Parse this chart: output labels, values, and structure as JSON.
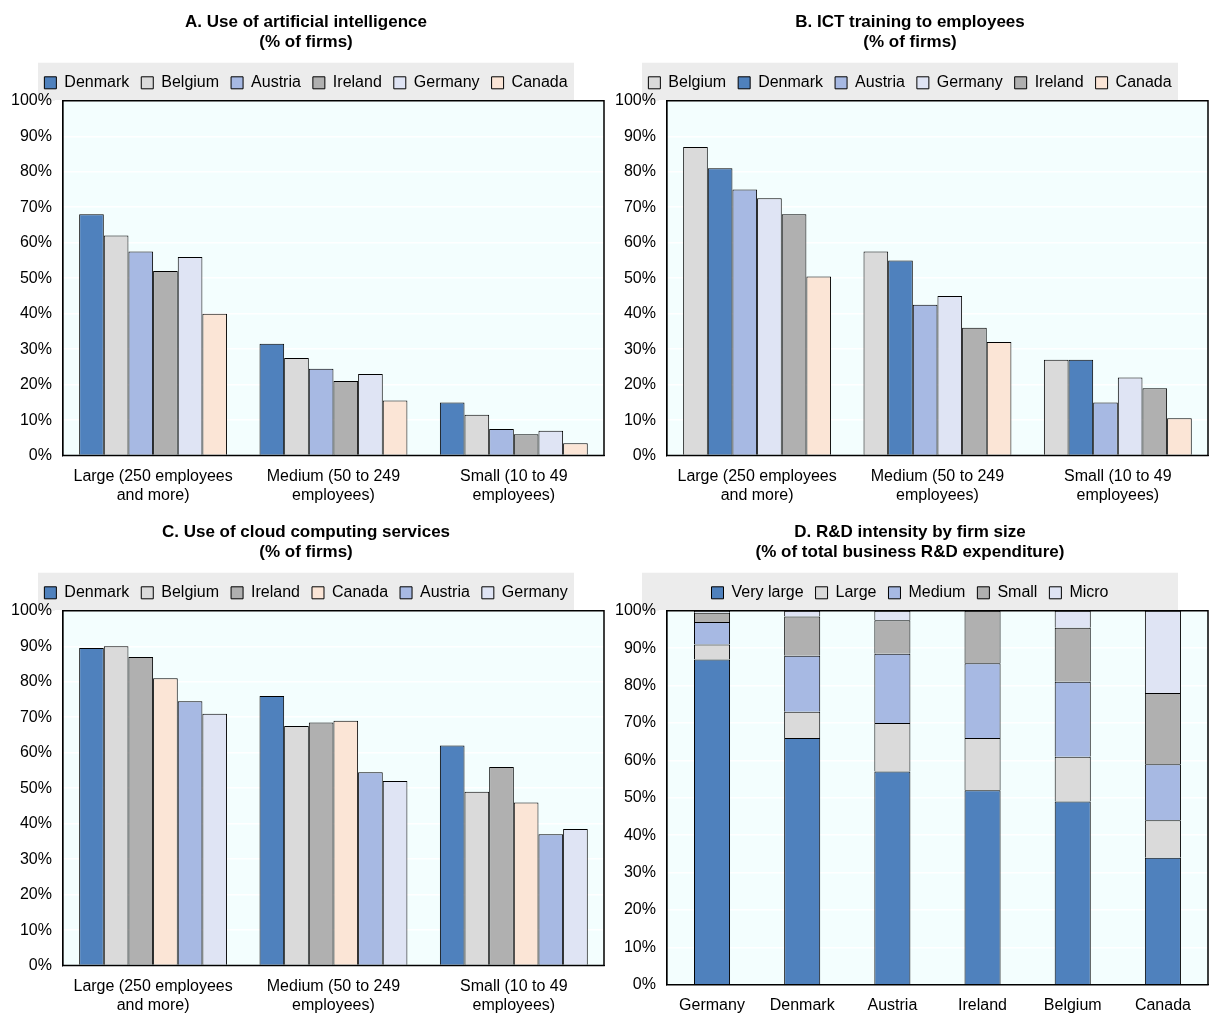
{
  "chart_data": [
    {
      "type": "bar",
      "title": "A. Use of artificial intelligence",
      "subtitle": "(% of firms)",
      "categories": [
        "Large (250 employees and more)",
        "Medium (50 to 249 employees)",
        "Small (10 to 49 employees)"
      ],
      "series": [
        {
          "name": "Denmark",
          "color": "#4f81bd",
          "values": [
            68,
            31.5,
            15
          ]
        },
        {
          "name": "Belgium",
          "color": "#dadada",
          "values": [
            62,
            27.5,
            11.5
          ]
        },
        {
          "name": "Austria",
          "color": "#a7b9e3",
          "values": [
            57.5,
            24.5,
            7.5
          ]
        },
        {
          "name": "Ireland",
          "color": "#b0b0b0",
          "values": [
            52,
            21,
            6
          ]
        },
        {
          "name": "Germany",
          "color": "#dfe4f4",
          "values": [
            56,
            23,
            7
          ]
        },
        {
          "name": "Canada",
          "color": "#fbe5d6",
          "values": [
            40,
            15.5,
            3.5
          ]
        }
      ],
      "ylim": [
        0,
        100
      ],
      "yticks": [
        {
          "value": 0,
          "label": "0%"
        },
        {
          "value": 10,
          "label": "10%"
        },
        {
          "value": 20,
          "label": "20%"
        },
        {
          "value": 30,
          "label": "30%"
        },
        {
          "value": 40,
          "label": "40%"
        },
        {
          "value": 50,
          "label": "50%"
        },
        {
          "value": 60,
          "label": "60%"
        },
        {
          "value": 70,
          "label": "70%"
        },
        {
          "value": 80,
          "label": "80%"
        },
        {
          "value": 90,
          "label": "90%"
        },
        {
          "value": 100,
          "label": "100%"
        }
      ],
      "grid": "y",
      "legend": "top"
    },
    {
      "type": "bar",
      "title": "B. ICT training to employees",
      "subtitle": "(% of firms)",
      "categories": [
        "Large (250 employees and more)",
        "Medium (50 to 249 employees)",
        "Small (10 to 49 employees)"
      ],
      "series": [
        {
          "name": "Belgium",
          "color": "#dadada",
          "values": [
            87,
            57.5,
            27
          ]
        },
        {
          "name": "Denmark",
          "color": "#4f81bd",
          "values": [
            81,
            55,
            27
          ]
        },
        {
          "name": "Austria",
          "color": "#a7b9e3",
          "values": [
            75,
            42.5,
            15
          ]
        },
        {
          "name": "Germany",
          "color": "#dfe4f4",
          "values": [
            72.5,
            45,
            22
          ]
        },
        {
          "name": "Ireland",
          "color": "#b0b0b0",
          "values": [
            68,
            36,
            19
          ]
        },
        {
          "name": "Canada",
          "color": "#fbe5d6",
          "values": [
            50.5,
            32,
            10.5
          ]
        }
      ],
      "ylim": [
        0,
        100
      ],
      "yticks": [
        {
          "value": 0,
          "label": "0%"
        },
        {
          "value": 10,
          "label": "10%"
        },
        {
          "value": 20,
          "label": "20%"
        },
        {
          "value": 30,
          "label": "30%"
        },
        {
          "value": 40,
          "label": "40%"
        },
        {
          "value": 50,
          "label": "50%"
        },
        {
          "value": 60,
          "label": "60%"
        },
        {
          "value": 70,
          "label": "70%"
        },
        {
          "value": 80,
          "label": "80%"
        },
        {
          "value": 90,
          "label": "90%"
        },
        {
          "value": 100,
          "label": "100%"
        }
      ],
      "grid": "y",
      "legend": "top"
    },
    {
      "type": "bar",
      "title": "C. Use of cloud computing services",
      "subtitle": "(% of firms)",
      "categories": [
        "Large (250 employees and more)",
        "Medium (50 to 249 employees)",
        "Small (10 to 49 employees)"
      ],
      "series": [
        {
          "name": "Denmark",
          "color": "#4f81bd",
          "values": [
            89.5,
            76,
            62
          ]
        },
        {
          "name": "Belgium",
          "color": "#dadada",
          "values": [
            90,
            67.5,
            49
          ]
        },
        {
          "name": "Ireland",
          "color": "#b0b0b0",
          "values": [
            87,
            68.5,
            56
          ]
        },
        {
          "name": "Canada",
          "color": "#fbe5d6",
          "values": [
            81,
            69,
            46
          ]
        },
        {
          "name": "Austria",
          "color": "#a7b9e3",
          "values": [
            74.5,
            54.5,
            37
          ]
        },
        {
          "name": "Germany",
          "color": "#dfe4f4",
          "values": [
            71,
            52,
            38.5
          ]
        }
      ],
      "ylim": [
        0,
        100
      ],
      "yticks": [
        {
          "value": 0,
          "label": "0%"
        },
        {
          "value": 10,
          "label": "10%"
        },
        {
          "value": 20,
          "label": "20%"
        },
        {
          "value": 30,
          "label": "30%"
        },
        {
          "value": 40,
          "label": "40%"
        },
        {
          "value": 50,
          "label": "50%"
        },
        {
          "value": 60,
          "label": "60%"
        },
        {
          "value": 70,
          "label": "70%"
        },
        {
          "value": 80,
          "label": "80%"
        },
        {
          "value": 90,
          "label": "90%"
        },
        {
          "value": 100,
          "label": "100%"
        }
      ],
      "grid": "y",
      "legend": "top"
    },
    {
      "type": "bar",
      "stacked": true,
      "title": "D. R&D intensity by firm size",
      "subtitle": "(% of total business R&D expenditure)",
      "categories": [
        "Germany",
        "Denmark",
        "Austria",
        "Ireland",
        "Belgium",
        "Canada"
      ],
      "series": [
        {
          "name": "Very large",
          "color": "#4f81bd",
          "values": [
            87,
            66,
            57,
            52,
            49,
            34
          ]
        },
        {
          "name": "Large",
          "color": "#dadada",
          "values": [
            4,
            7,
            13,
            14,
            12,
            10
          ]
        },
        {
          "name": "Medium",
          "color": "#a7b9e3",
          "values": [
            6,
            15,
            18.5,
            20,
            20,
            15
          ]
        },
        {
          "name": "Small",
          "color": "#b0b0b0",
          "values": [
            2.5,
            10.5,
            9,
            14,
            14.5,
            19
          ]
        },
        {
          "name": "Micro",
          "color": "#dfe4f4",
          "values": [
            0.5,
            1.5,
            2.5,
            0,
            4.5,
            22
          ]
        }
      ],
      "ylim": [
        0,
        100
      ],
      "yticks": [
        {
          "value": 0,
          "label": "0%"
        },
        {
          "value": 10,
          "label": "10%"
        },
        {
          "value": 20,
          "label": "20%"
        },
        {
          "value": 30,
          "label": "30%"
        },
        {
          "value": 40,
          "label": "40%"
        },
        {
          "value": 50,
          "label": "50%"
        },
        {
          "value": 60,
          "label": "60%"
        },
        {
          "value": 70,
          "label": "70%"
        },
        {
          "value": 80,
          "label": "80%"
        },
        {
          "value": 90,
          "label": "90%"
        },
        {
          "value": 100,
          "label": "100%"
        }
      ],
      "grid": "y",
      "legend": "top"
    }
  ]
}
